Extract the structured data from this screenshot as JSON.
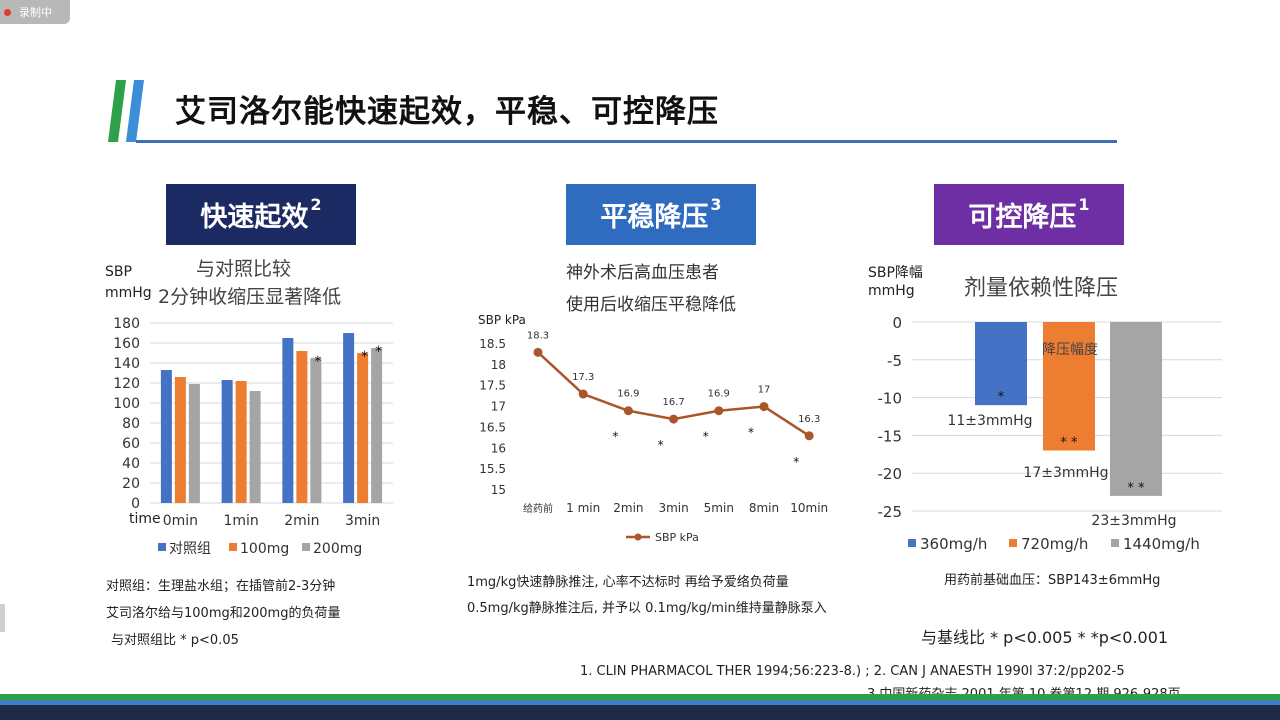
{
  "recording_label": "录制中",
  "page_title": "艾司洛尔能快速起效，平稳、可控降压",
  "sections": [
    {
      "label": "快速起效",
      "sup": "2",
      "color": "#1c2a63"
    },
    {
      "label": "平稳降压",
      "sup": "3",
      "color": "#2f6cc0"
    },
    {
      "label": "可控降压",
      "sup": "1",
      "color": "#6d2fa3"
    }
  ],
  "left_panel": {
    "subtitle_1": "与对照比较",
    "subtitle_2": "2分钟收缩压显著降低",
    "ylabel_1": "SBP",
    "ylabel_2": "mmHg",
    "xaxis_prefix": "time",
    "note_1": "对照组：生理盐水组；在插管前2-3分钟",
    "note_2": "艾司洛尔给与100mg和200mg的负荷量",
    "note_3": "与对照组比  * p<0.05"
  },
  "middle_panel": {
    "subtitle_1": "神外术后高血压患者",
    "subtitle_2": "使用后收缩压平稳降低",
    "ylabel": "SBP kPa",
    "note_1": "1mg/kg快速静脉推注, 心率不达标时 再给予爱络负荷量",
    "note_2": "0.5mg/kg静脉推注后, 并予以 0.1mg/kg/min维持量静脉泵入"
  },
  "right_panel": {
    "subtitle": "剂量依赖性降压",
    "ylabel_1": "SBP降幅",
    "ylabel_2": "mmHg",
    "note": "用药前基础血压：SBP143±6mmHg",
    "significance": "与基线比  * p<0.005      * *p<0.001"
  },
  "references": {
    "line_1": "1.      CLIN PHARMACOL THER 1994;56:223-8.) ; 2. CAN J ANAESTH 1990l 37:2/pp202-5",
    "line_2": "3.中国新药杂志 2001 年第 10 卷第12 期 926-928页"
  },
  "chart_data": [
    {
      "type": "bar",
      "categories": [
        "0min",
        "1min",
        "2min",
        "3min"
      ],
      "series": [
        {
          "name": "对照组",
          "color": "#4472c4",
          "values": [
            133,
            123,
            165,
            170
          ]
        },
        {
          "name": "100mg",
          "color": "#ed7d31",
          "values": [
            126,
            122,
            152,
            150
          ]
        },
        {
          "name": "200mg",
          "color": "#a5a5a5",
          "values": [
            119,
            112,
            145,
            155
          ]
        }
      ],
      "markers": [
        {
          "category": "2min",
          "series": "200mg",
          "text": "*"
        },
        {
          "category": "3min",
          "series": "100mg",
          "text": "*"
        },
        {
          "category": "3min",
          "series": "200mg",
          "text": "*"
        }
      ],
      "yticks": [
        0,
        20,
        40,
        60,
        80,
        100,
        120,
        140,
        160,
        180
      ],
      "ylim": [
        0,
        180
      ],
      "grid": true,
      "legend": "bottom"
    },
    {
      "type": "line",
      "categories": [
        "给药前",
        "1 min",
        "2min",
        "3min",
        "5min",
        "8min",
        "10min"
      ],
      "series": [
        {
          "name": "SBP kPa",
          "color": "#a9562b",
          "values": [
            18.3,
            17.3,
            16.9,
            16.7,
            16.9,
            17,
            16.3
          ]
        }
      ],
      "data_labels": [
        "18.3",
        "17.3",
        "16.9",
        "16.7",
        "16.9",
        "17",
        "16.3"
      ],
      "star_categories": [
        "2min",
        "3min",
        "5min",
        "8min",
        "10min"
      ],
      "yticks": [
        15,
        15.5,
        16,
        16.5,
        17,
        17.5,
        18,
        18.5
      ],
      "ylim": [
        15,
        18.5
      ],
      "grid": false,
      "legend": "bottom"
    },
    {
      "type": "bar",
      "categories": [
        "360mg/h",
        "720mg/h",
        "1440mg/h"
      ],
      "series": [
        {
          "name": "降幅",
          "values": [
            -11,
            -17,
            -23
          ]
        }
      ],
      "colors": [
        "#4472c4",
        "#ed7d31",
        "#a5a5a5"
      ],
      "data_labels": [
        "11±3mmHg",
        "17±3mmHg",
        "23±3mmHg"
      ],
      "markers": [
        "*",
        "* *",
        "* *"
      ],
      "annotation": "降压幅度",
      "yticks": [
        0,
        -5,
        -10,
        -15,
        -20,
        -25
      ],
      "ylim": [
        -25,
        0
      ],
      "grid": true,
      "legend": "bottom"
    }
  ]
}
